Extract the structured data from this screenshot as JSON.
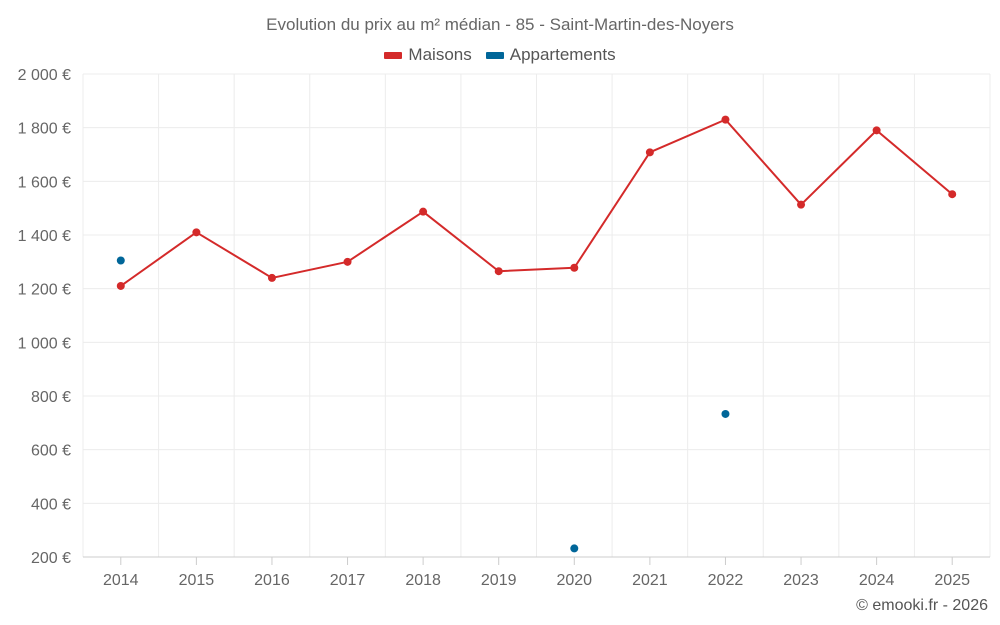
{
  "chart_data": {
    "type": "line",
    "title": "Evolution du prix au m² médian - 85 - Saint-Martin-des-Noyers",
    "xlabel": "",
    "ylabel": "",
    "categories": [
      "2014",
      "2015",
      "2016",
      "2017",
      "2018",
      "2019",
      "2020",
      "2021",
      "2022",
      "2023",
      "2024",
      "2025"
    ],
    "ylim": [
      200,
      2000
    ],
    "yticks": [
      200,
      400,
      600,
      800,
      1000,
      1200,
      1400,
      1600,
      1800,
      2000
    ],
    "ytick_labels": [
      "200 €",
      "400 €",
      "600 €",
      "800 €",
      "1 000 €",
      "1 200 €",
      "1 400 €",
      "1 600 €",
      "1 800 €",
      "2 000 €"
    ],
    "grid": true,
    "legend_position": "top-center",
    "series": [
      {
        "name": "Maisons",
        "color": "#d42a2a",
        "values": [
          1210,
          1410,
          1240,
          1300,
          1487,
          1265,
          1278,
          1708,
          1830,
          1513,
          1790,
          1552
        ]
      },
      {
        "name": "Appartements",
        "color": "#006699",
        "values": [
          1305,
          null,
          null,
          null,
          null,
          null,
          232,
          null,
          733,
          null,
          null,
          null
        ]
      }
    ]
  },
  "credit": "© emooki.fr - 2026"
}
